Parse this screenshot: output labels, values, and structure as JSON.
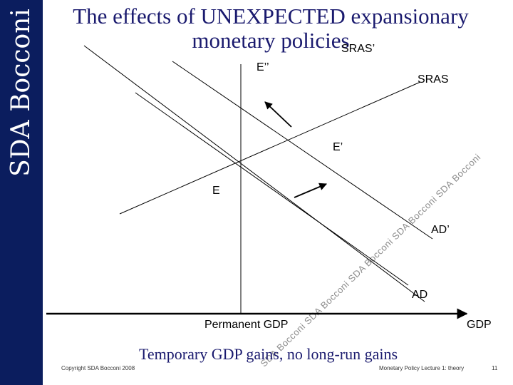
{
  "branding": {
    "sidebar_text": "SDA Bocconi",
    "sidebar_color": "#0b1d5e"
  },
  "title": {
    "line1": "The effects of UNEXPECTED expansionary",
    "line2": "monetary policies"
  },
  "diagram": {
    "x_axis_label": "GDP",
    "permanent_gdp_label": "Permanent GDP",
    "curves": {
      "sras": "SRAS",
      "sras_prime": "SRAS’",
      "ad": "AD",
      "ad_prime": "AD’"
    },
    "points": {
      "e": "E",
      "e_prime": "E’",
      "e_double_prime": "E’’"
    }
  },
  "caption": "Temporary GDP gains, no long-run gains",
  "footer": {
    "copyright": "Copyright SDA Bocconi 2008",
    "course": "Monetary Policy  Lecture 1: theory",
    "page": "11"
  },
  "watermark": "SDA Bocconi  SDA Bocconi  SDA Bocconi  SDA Bocconi  SDA Bocconi"
}
